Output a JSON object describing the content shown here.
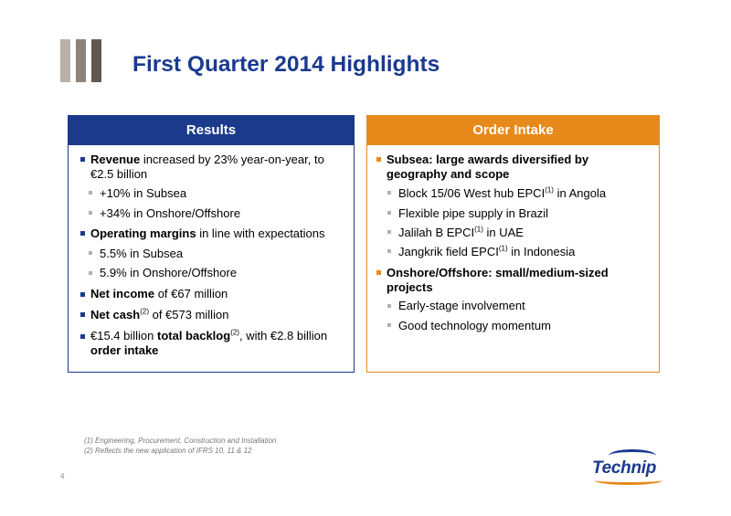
{
  "header": {
    "title": "First Quarter 2014 Highlights"
  },
  "results": {
    "heading": "Results",
    "revenue": {
      "bold": "Revenue",
      "text": " increased by 23% year-on-year, to",
      "line2": "€2.5 billion"
    },
    "sub1": "+10% in Subsea",
    "sub2": "+34% in Onshore/Offshore",
    "margins": {
      "bold": "Operating margins",
      "text": " in line with expectations"
    },
    "sub3": "5.5% in Subsea",
    "sub4": "5.9% in Onshore/Offshore",
    "net_income": {
      "bold": "Net income",
      "text": " of €67 million"
    },
    "net_cash": {
      "bold": "Net cash",
      "sup": "(2)",
      "text": " of €573 million"
    },
    "backlog": {
      "pre": "€15.4 billion ",
      "bold": "total backlog",
      "sup": "(2)",
      "text": ", with €2.8 billion",
      "line2": "order intake"
    }
  },
  "order_intake": {
    "heading": "Order Intake",
    "subsea": {
      "line1": "Subsea: large awards diversified by",
      "line2": "geography and scope"
    },
    "award1": {
      "pre": "Block 15/06 West hub EPCI",
      "sup": "(1)",
      "post": " in Angola"
    },
    "award2": {
      "text": "Flexible pipe supply in Brazil"
    },
    "award3": {
      "pre": "Jalilah B EPCI",
      "sup": "(1)",
      "post": " in UAE"
    },
    "award4": {
      "pre": "Jangkrik field EPCI",
      "sup": "(1)",
      "post": " in Indonesia"
    },
    "onshore": {
      "line1": "Onshore/Offshore: small/medium-sized",
      "line2": "projects"
    },
    "detail1": "Early-stage involvement",
    "detail2": "Good technology momentum"
  },
  "footnotes": [
    "(1) Engineering, Procurement, Construction and Installation",
    "(2) Reflects the new application of IFRS 10, 11 & 12"
  ],
  "page_number": "4",
  "logo": {
    "text": "Technip"
  },
  "colors": {
    "navy": "#1a3a8f",
    "orange": "#e8891c",
    "grey_bars": [
      "#b9b0a8",
      "#8d8378",
      "#63584f"
    ]
  }
}
